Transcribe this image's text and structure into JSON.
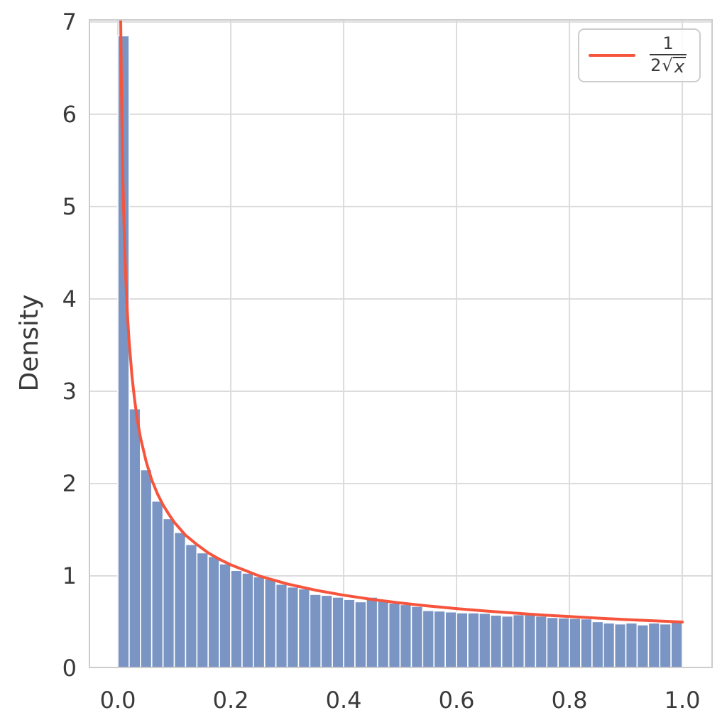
{
  "chart_data": {
    "type": "bar",
    "subtype": "histogram_with_density_curve",
    "title": "",
    "xlabel": "",
    "ylabel": "Density",
    "xlim": [
      -0.0516,
      1.054
    ],
    "ylim": [
      0,
      7.03
    ],
    "grid": true,
    "legend_position": "upper right",
    "x_ticks": [
      "0.0",
      "0.2",
      "0.4",
      "0.6",
      "0.8",
      "1.0"
    ],
    "y_ticks": [
      "0",
      "1",
      "2",
      "3",
      "4",
      "5",
      "6",
      "7"
    ],
    "colors": {
      "bar_fill": "#7a95c4",
      "bar_edge": "#ffffff",
      "curve": "#f6543c",
      "grid": "#dcdcdc",
      "spine": "#cccccc",
      "text": "#3a3a3a",
      "background": "#ffffff",
      "legend_border": "#cdcdcd"
    },
    "histogram": {
      "bin_start": 0.0,
      "bin_width": 0.02,
      "densities": [
        6.85,
        2.81,
        2.15,
        1.81,
        1.62,
        1.47,
        1.34,
        1.25,
        1.21,
        1.13,
        1.06,
        1.03,
        0.99,
        0.965,
        0.91,
        0.88,
        0.86,
        0.8,
        0.79,
        0.77,
        0.745,
        0.72,
        0.77,
        0.725,
        0.705,
        0.69,
        0.67,
        0.625,
        0.62,
        0.61,
        0.6,
        0.6,
        0.595,
        0.575,
        0.565,
        0.58,
        0.595,
        0.565,
        0.55,
        0.545,
        0.54,
        0.535,
        0.505,
        0.49,
        0.48,
        0.49,
        0.47,
        0.49,
        0.48,
        0.5
      ]
    },
    "curve": {
      "formula": "1/(2*sqrt(x))",
      "legend_numerator": "1",
      "legend_den_coefficient": "2",
      "legend_sqrt_sign": "√",
      "legend_sqrt_argument": "x",
      "points": {
        "x": [
          0.00505,
          0.006,
          0.007,
          0.008,
          0.009,
          0.01,
          0.012,
          0.014,
          0.016,
          0.018,
          0.02,
          0.025,
          0.03,
          0.035,
          0.04,
          0.05,
          0.06,
          0.07,
          0.08,
          0.09,
          0.1,
          0.12,
          0.14,
          0.16,
          0.18,
          0.2,
          0.25,
          0.3,
          0.35,
          0.4,
          0.45,
          0.5,
          0.55,
          0.6,
          0.65,
          0.7,
          0.75,
          0.8,
          0.85,
          0.9,
          0.95,
          1.0
        ],
        "y": [
          7.03,
          6.45,
          5.98,
          5.59,
          5.27,
          5.0,
          4.56,
          4.23,
          3.95,
          3.73,
          3.54,
          3.16,
          2.89,
          2.67,
          2.5,
          2.24,
          2.04,
          1.89,
          1.77,
          1.67,
          1.58,
          1.44,
          1.34,
          1.25,
          1.18,
          1.12,
          1.0,
          0.913,
          0.845,
          0.791,
          0.745,
          0.707,
          0.674,
          0.645,
          0.62,
          0.598,
          0.577,
          0.559,
          0.542,
          0.527,
          0.513,
          0.5
        ]
      }
    }
  }
}
